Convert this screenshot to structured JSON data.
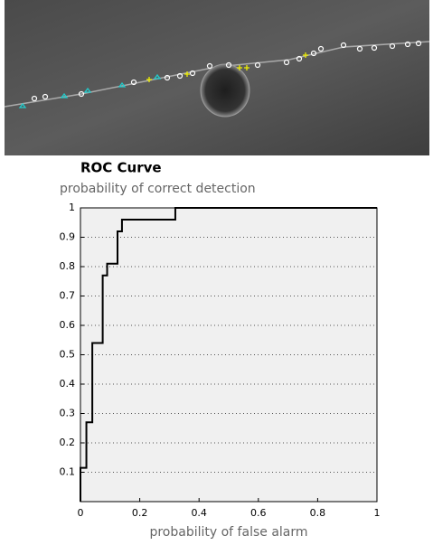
{
  "chart_data": {
    "type": "line",
    "title": "ROC Curve",
    "y_label": "probability of correct detection",
    "x_label": "probability of false alarm",
    "x": [
      0,
      0,
      0.02,
      0.02,
      0.04,
      0.04,
      0.075,
      0.075,
      0.09,
      0.09,
      0.125,
      0.125,
      0.14,
      0.14,
      0.32,
      0.32,
      1
    ],
    "series": [
      {
        "color": "#000000",
        "values": [
          0,
          0.115,
          0.115,
          0.27,
          0.27,
          0.54,
          0.54,
          0.77,
          0.77,
          0.81,
          0.81,
          0.92,
          0.92,
          0.96,
          0.96,
          1,
          1
        ]
      }
    ],
    "xlim": [
      0,
      1
    ],
    "ylim": [
      0,
      1
    ],
    "xticks": [
      0,
      0.2,
      0.4,
      0.6,
      0.8,
      1
    ],
    "yticks": [
      0.1,
      0.2,
      0.3,
      0.4,
      0.5,
      0.6,
      0.7,
      0.8,
      0.9,
      1
    ],
    "grid": true
  }
}
